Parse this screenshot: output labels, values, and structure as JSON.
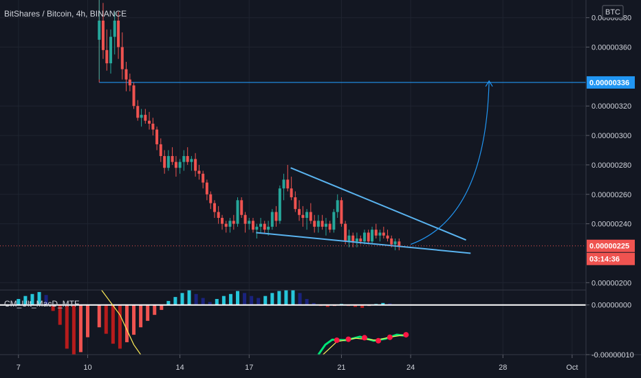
{
  "chart_data": {
    "type": "candlestick",
    "title": "BitShares / Bitcoin, 4h, BINANCE",
    "currency_label": "BTC",
    "price_axis": {
      "range": [
        1.95e-06,
        3.92e-06
      ],
      "ticks": [
        "0.00000380",
        "0.00000360",
        "0.00000320",
        "0.00000300",
        "0.00000280",
        "0.00000260",
        "0.00000240",
        "0.00000200"
      ]
    },
    "time_axis": {
      "range": [
        6.2,
        31.6
      ],
      "ticks": [
        {
          "label": "7",
          "day": 7
        },
        {
          "label": "10",
          "day": 10
        },
        {
          "label": "14",
          "day": 14
        },
        {
          "label": "17",
          "day": 17
        },
        {
          "label": "21",
          "day": 21
        },
        {
          "label": "24",
          "day": 24
        },
        {
          "label": "28",
          "day": 28
        },
        {
          "label": "Oct",
          "day": 31
        }
      ]
    },
    "target_line": {
      "value": 3.36e-06,
      "label": "0.00000336",
      "start_day": 10.5
    },
    "last_price": {
      "value": 2.25e-06,
      "label": "0.00000225",
      "countdown": "03:14:36"
    },
    "colors": {
      "up": "#26a69a",
      "down": "#ef5350",
      "drawing": "#5ab4f0",
      "target": "#2196f3"
    },
    "candles": [
      [
        10.5,
        365,
        392,
        338,
        378
      ],
      [
        10.67,
        378,
        390,
        352,
        358
      ],
      [
        10.83,
        358,
        372,
        344,
        349
      ],
      [
        11.0,
        349,
        372,
        342,
        367
      ],
      [
        11.17,
        367,
        384,
        355,
        378
      ],
      [
        11.33,
        378,
        384,
        352,
        360
      ],
      [
        11.5,
        360,
        370,
        338,
        345
      ],
      [
        11.67,
        345,
        350,
        330,
        338
      ],
      [
        11.83,
        338,
        342,
        330,
        334
      ],
      [
        12.0,
        334,
        336,
        318,
        320
      ],
      [
        12.17,
        320,
        324,
        310,
        312
      ],
      [
        12.33,
        312,
        318,
        306,
        314
      ],
      [
        12.5,
        314,
        318,
        308,
        310
      ],
      [
        12.67,
        310,
        316,
        304,
        308
      ],
      [
        12.83,
        308,
        312,
        300,
        304
      ],
      [
        13.0,
        304,
        306,
        290,
        294
      ],
      [
        13.17,
        294,
        298,
        282,
        286
      ],
      [
        13.33,
        286,
        290,
        274,
        278
      ],
      [
        13.5,
        278,
        290,
        276,
        286
      ],
      [
        13.67,
        286,
        292,
        280,
        282
      ],
      [
        13.83,
        282,
        286,
        272,
        278
      ],
      [
        14.0,
        278,
        284,
        274,
        282
      ],
      [
        14.17,
        282,
        290,
        276,
        286
      ],
      [
        14.33,
        286,
        292,
        280,
        282
      ],
      [
        14.5,
        282,
        286,
        276,
        284
      ],
      [
        14.67,
        284,
        288,
        272,
        276
      ],
      [
        14.83,
        276,
        280,
        270,
        274
      ],
      [
        15.0,
        274,
        276,
        264,
        268
      ],
      [
        15.17,
        268,
        270,
        256,
        260
      ],
      [
        15.33,
        260,
        262,
        250,
        254
      ],
      [
        15.5,
        254,
        256,
        244,
        248
      ],
      [
        15.67,
        248,
        252,
        240,
        244
      ],
      [
        15.83,
        244,
        246,
        236,
        240
      ],
      [
        16.0,
        240,
        242,
        234,
        238
      ],
      [
        16.17,
        238,
        244,
        234,
        242
      ],
      [
        16.33,
        242,
        246,
        236,
        240
      ],
      [
        16.5,
        240,
        258,
        238,
        256
      ],
      [
        16.67,
        256,
        258,
        244,
        246
      ],
      [
        16.83,
        246,
        248,
        234,
        240
      ],
      [
        17.0,
        240,
        244,
        236,
        242
      ],
      [
        17.17,
        242,
        244,
        234,
        236
      ],
      [
        17.33,
        236,
        240,
        230,
        238
      ],
      [
        17.5,
        238,
        244,
        234,
        240
      ],
      [
        17.67,
        240,
        242,
        234,
        236
      ],
      [
        17.83,
        236,
        242,
        232,
        238
      ],
      [
        18.0,
        238,
        250,
        236,
        248
      ],
      [
        18.17,
        248,
        252,
        238,
        242
      ],
      [
        18.33,
        242,
        266,
        240,
        264
      ],
      [
        18.5,
        264,
        274,
        256,
        270
      ],
      [
        18.67,
        270,
        280,
        262,
        264
      ],
      [
        18.83,
        264,
        272,
        256,
        258
      ],
      [
        19.0,
        258,
        262,
        248,
        250
      ],
      [
        19.17,
        250,
        256,
        242,
        246
      ],
      [
        19.33,
        246,
        252,
        238,
        244
      ],
      [
        19.5,
        244,
        250,
        236,
        248
      ],
      [
        19.67,
        248,
        254,
        240,
        242
      ],
      [
        19.83,
        242,
        246,
        234,
        238
      ],
      [
        20.0,
        238,
        246,
        234,
        242
      ],
      [
        20.17,
        242,
        246,
        236,
        238
      ],
      [
        20.33,
        238,
        244,
        232,
        240
      ],
      [
        20.5,
        240,
        242,
        234,
        236
      ],
      [
        20.67,
        236,
        250,
        234,
        248
      ],
      [
        20.83,
        248,
        260,
        244,
        256
      ],
      [
        21.0,
        256,
        258,
        238,
        240
      ],
      [
        21.17,
        240,
        242,
        226,
        228
      ],
      [
        21.33,
        228,
        236,
        224,
        232
      ],
      [
        21.5,
        232,
        234,
        224,
        228
      ],
      [
        21.67,
        228,
        234,
        224,
        230
      ],
      [
        21.83,
        230,
        232,
        226,
        228
      ],
      [
        22.0,
        228,
        236,
        226,
        234
      ],
      [
        22.17,
        234,
        236,
        226,
        228
      ],
      [
        22.33,
        228,
        238,
        226,
        236
      ],
      [
        22.5,
        236,
        240,
        230,
        232
      ],
      [
        22.67,
        232,
        236,
        228,
        234
      ],
      [
        22.83,
        234,
        238,
        230,
        232
      ],
      [
        23.0,
        232,
        236,
        228,
        230
      ],
      [
        23.17,
        230,
        232,
        224,
        226
      ],
      [
        23.33,
        226,
        230,
        222,
        228
      ],
      [
        23.5,
        228,
        230,
        222,
        225
      ]
    ],
    "drawings": {
      "wedge_upper": [
        [
          18.8,
          278
        ],
        [
          26.4,
          229
        ]
      ],
      "wedge_lower": [
        [
          17.3,
          234
        ],
        [
          26.6,
          220
        ]
      ],
      "projection_curve": {
        "from": [
          24.0,
          226
        ],
        "to": [
          27.4,
          337
        ]
      }
    },
    "indicator": {
      "name": "CM_Ult_MacD_MTF",
      "range": [
        -1e-07,
        3e-08
      ],
      "ticks": [
        "0.00000000",
        "-0.00000010"
      ],
      "colors": {
        "pos_strong": "#26c6da",
        "pos_weak": "#1a237e",
        "neg_strong": "#b71c1c",
        "neg_weak": "#ef5350",
        "signal": "#ffee58",
        "macd": "#00e676",
        "cross": "#ff1744"
      },
      "histogram": [
        [
          7.0,
          12
        ],
        [
          7.3,
          18
        ],
        [
          7.6,
          22
        ],
        [
          7.9,
          26
        ],
        [
          8.2,
          20
        ],
        [
          8.5,
          -12
        ],
        [
          8.8,
          -40
        ],
        [
          9.1,
          -88
        ],
        [
          9.4,
          -100
        ],
        [
          9.7,
          -95
        ],
        [
          10.0,
          -65
        ],
        [
          10.5,
          -45
        ],
        [
          10.8,
          -58
        ],
        [
          11.1,
          -78
        ],
        [
          11.4,
          -88
        ],
        [
          11.7,
          -75
        ],
        [
          12.0,
          -60
        ],
        [
          12.3,
          -45
        ],
        [
          12.6,
          -32
        ],
        [
          12.9,
          -20
        ],
        [
          13.2,
          -10
        ],
        [
          13.5,
          8
        ],
        [
          13.8,
          16
        ],
        [
          14.1,
          24
        ],
        [
          14.4,
          30
        ],
        [
          14.7,
          22
        ],
        [
          15.0,
          14
        ],
        [
          15.3,
          6
        ],
        [
          15.6,
          12
        ],
        [
          15.9,
          18
        ],
        [
          16.2,
          22
        ],
        [
          16.5,
          28
        ],
        [
          16.8,
          24
        ],
        [
          17.1,
          18
        ],
        [
          17.4,
          14
        ],
        [
          17.7,
          18
        ],
        [
          18.0,
          24
        ],
        [
          18.3,
          28
        ],
        [
          18.6,
          30
        ],
        [
          18.9,
          30
        ],
        [
          19.2,
          24
        ],
        [
          19.5,
          12
        ],
        [
          19.8,
          4
        ],
        [
          20.1,
          -2
        ],
        [
          20.4,
          -4
        ],
        [
          20.7,
          -2
        ],
        [
          21.0,
          2
        ],
        [
          21.3,
          -2
        ],
        [
          21.6,
          -4
        ],
        [
          21.9,
          -6
        ],
        [
          22.2,
          -2
        ],
        [
          22.5,
          2
        ],
        [
          22.8,
          4
        ],
        [
          23.1,
          3
        ],
        [
          23.4,
          1
        ]
      ],
      "signal_line": [
        [
          10.6,
          30
        ],
        [
          11.4,
          -20
        ],
        [
          12.0,
          -80
        ],
        [
          12.3,
          -100
        ]
      ],
      "macd_line": [
        [
          20.0,
          -100
        ],
        [
          20.3,
          -80
        ],
        [
          20.6,
          -70
        ],
        [
          21.2,
          -71
        ],
        [
          21.8,
          -64
        ],
        [
          22.4,
          -72
        ],
        [
          22.9,
          -68
        ],
        [
          23.4,
          -60
        ],
        [
          23.8,
          -62
        ]
      ],
      "cross_points": [
        [
          20.8,
          -71
        ],
        [
          21.3,
          -69
        ],
        [
          22.0,
          -66
        ],
        [
          22.6,
          -72
        ],
        [
          23.1,
          -65
        ],
        [
          23.8,
          -60
        ]
      ]
    }
  }
}
